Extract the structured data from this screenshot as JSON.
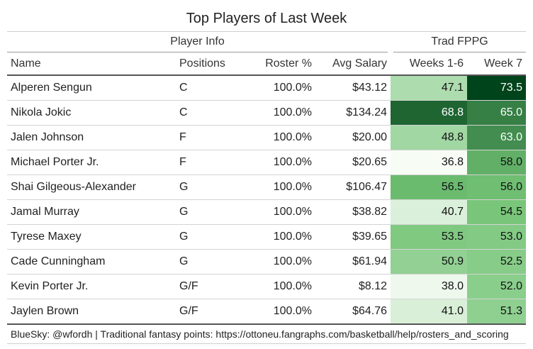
{
  "title": "Top Players of Last Week",
  "spanners": {
    "info": "Player Info",
    "fppg": "Trad FPPG"
  },
  "columns": {
    "name": "Name",
    "positions": "Positions",
    "roster": "Roster %",
    "salary": "Avg Salary",
    "weeks": "Weeks 1-6",
    "week7": "Week 7"
  },
  "rows": [
    {
      "name": "Alperen Sengun",
      "positions": "C",
      "roster": "100.0%",
      "salary": "$43.12",
      "weeks": "47.1",
      "week7": "73.5"
    },
    {
      "name": "Nikola Jokic",
      "positions": "C",
      "roster": "100.0%",
      "salary": "$134.24",
      "weeks": "68.8",
      "week7": "65.0"
    },
    {
      "name": "Jalen Johnson",
      "positions": "F",
      "roster": "100.0%",
      "salary": "$20.00",
      "weeks": "48.8",
      "week7": "63.0"
    },
    {
      "name": "Michael Porter Jr.",
      "positions": "F",
      "roster": "100.0%",
      "salary": "$20.65",
      "weeks": "36.8",
      "week7": "58.0"
    },
    {
      "name": "Shai Gilgeous-Alexander",
      "positions": "G",
      "roster": "100.0%",
      "salary": "$106.47",
      "weeks": "56.5",
      "week7": "56.0"
    },
    {
      "name": "Jamal Murray",
      "positions": "G",
      "roster": "100.0%",
      "salary": "$38.82",
      "weeks": "40.7",
      "week7": "54.5"
    },
    {
      "name": "Tyrese Maxey",
      "positions": "G",
      "roster": "100.0%",
      "salary": "$39.65",
      "weeks": "53.5",
      "week7": "53.0"
    },
    {
      "name": "Cade Cunningham",
      "positions": "G",
      "roster": "100.0%",
      "salary": "$61.94",
      "weeks": "50.9",
      "week7": "52.5"
    },
    {
      "name": "Kevin Porter Jr.",
      "positions": "G/F",
      "roster": "100.0%",
      "salary": "$8.12",
      "weeks": "38.0",
      "week7": "52.0"
    },
    {
      "name": "Jaylen Brown",
      "positions": "G/F",
      "roster": "100.0%",
      "salary": "$64.76",
      "weeks": "41.0",
      "week7": "51.3"
    }
  ],
  "heat_scale": {
    "min": 36.8,
    "max": 73.5,
    "low_color": "#f7fcf5",
    "mid_color": "#74c476",
    "high_color": "#00441b"
  },
  "footer": "BlueSky: @wfordh | Traditional fantasy points: https://ottoneu.fangraphs.com/basketball/help/rosters_and_scoring"
}
